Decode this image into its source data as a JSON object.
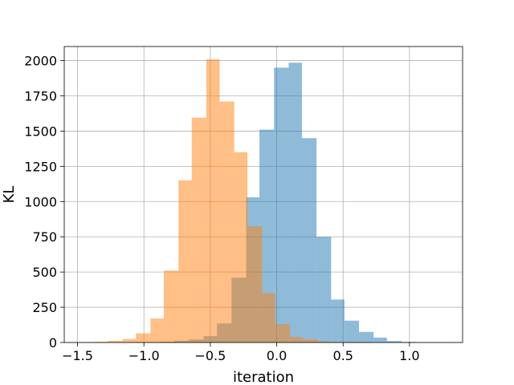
{
  "chart_data": {
    "type": "bar",
    "subtype": "overlapping-histogram",
    "xlabel": "iteration",
    "ylabel": "KL",
    "xlim": [
      -1.6,
      1.4
    ],
    "ylim": [
      0,
      2100
    ],
    "grid": true,
    "x_ticks": [
      -1.5,
      -1.0,
      -0.5,
      0.0,
      0.5,
      1.0
    ],
    "x_tick_labels": [
      "−1.5",
      "−1.0",
      "−0.5",
      "0.0",
      "0.5",
      "1.0"
    ],
    "y_ticks": [
      0,
      250,
      500,
      750,
      1000,
      1250,
      1500,
      1750,
      2000
    ],
    "y_tick_labels": [
      "0",
      "250",
      "500",
      "750",
      "1000",
      "1250",
      "1500",
      "1750",
      "2000"
    ],
    "series": [
      {
        "color": "#1f77b4",
        "opacity": 0.5,
        "bins": [
          {
            "x0": -0.98,
            "x1": -0.87,
            "count": 2
          },
          {
            "x0": -0.87,
            "x1": -0.77,
            "count": 5
          },
          {
            "x0": -0.77,
            "x1": -0.66,
            "count": 12
          },
          {
            "x0": -0.66,
            "x1": -0.55,
            "count": 22
          },
          {
            "x0": -0.55,
            "x1": -0.45,
            "count": 45
          },
          {
            "x0": -0.45,
            "x1": -0.34,
            "count": 135
          },
          {
            "x0": -0.34,
            "x1": -0.23,
            "count": 460
          },
          {
            "x0": -0.23,
            "x1": -0.13,
            "count": 1030
          },
          {
            "x0": -0.13,
            "x1": -0.02,
            "count": 1510
          },
          {
            "x0": -0.02,
            "x1": 0.09,
            "count": 1950
          },
          {
            "x0": 0.09,
            "x1": 0.19,
            "count": 1985
          },
          {
            "x0": 0.19,
            "x1": 0.3,
            "count": 1450
          },
          {
            "x0": 0.3,
            "x1": 0.41,
            "count": 750
          },
          {
            "x0": 0.41,
            "x1": 0.51,
            "count": 305
          },
          {
            "x0": 0.51,
            "x1": 0.62,
            "count": 155
          },
          {
            "x0": 0.62,
            "x1": 0.73,
            "count": 75
          },
          {
            "x0": 0.73,
            "x1": 0.83,
            "count": 35
          },
          {
            "x0": 0.83,
            "x1": 0.94,
            "count": 10
          },
          {
            "x0": 0.94,
            "x1": 1.05,
            "count": 4
          },
          {
            "x0": 1.05,
            "x1": 1.16,
            "count": 1
          },
          {
            "x0": 1.16,
            "x1": 1.26,
            "count": 1
          }
        ]
      },
      {
        "color": "#ff7f0e",
        "opacity": 0.5,
        "bins": [
          {
            "x0": -1.48,
            "x1": -1.37,
            "count": 2
          },
          {
            "x0": -1.37,
            "x1": -1.27,
            "count": 5
          },
          {
            "x0": -1.27,
            "x1": -1.16,
            "count": 12
          },
          {
            "x0": -1.16,
            "x1": -1.06,
            "count": 25
          },
          {
            "x0": -1.06,
            "x1": -0.95,
            "count": 65
          },
          {
            "x0": -0.95,
            "x1": -0.85,
            "count": 170
          },
          {
            "x0": -0.85,
            "x1": -0.74,
            "count": 510
          },
          {
            "x0": -0.74,
            "x1": -0.64,
            "count": 1150
          },
          {
            "x0": -0.64,
            "x1": -0.53,
            "count": 1595
          },
          {
            "x0": -0.53,
            "x1": -0.43,
            "count": 2010
          },
          {
            "x0": -0.43,
            "x1": -0.32,
            "count": 1710
          },
          {
            "x0": -0.32,
            "x1": -0.22,
            "count": 1350
          },
          {
            "x0": -0.22,
            "x1": -0.11,
            "count": 825
          },
          {
            "x0": -0.11,
            "x1": -0.01,
            "count": 350
          },
          {
            "x0": -0.01,
            "x1": 0.1,
            "count": 130
          },
          {
            "x0": 0.1,
            "x1": 0.2,
            "count": 40
          },
          {
            "x0": 0.2,
            "x1": 0.31,
            "count": 22
          },
          {
            "x0": 0.31,
            "x1": 0.41,
            "count": 8
          },
          {
            "x0": 0.41,
            "x1": 0.52,
            "count": 3
          },
          {
            "x0": 0.52,
            "x1": 0.62,
            "count": 1
          }
        ]
      }
    ]
  }
}
